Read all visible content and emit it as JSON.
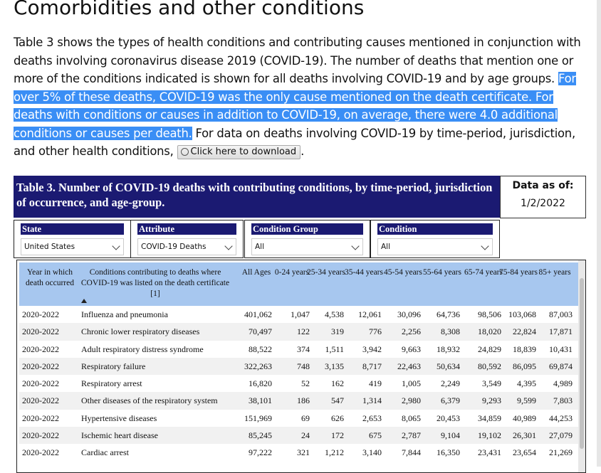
{
  "heading": "Comorbidities and other conditions",
  "paragraph": {
    "intro": "Table 3 shows the types of health conditions and contributing causes mentioned in conjunction with deaths involving coronavirus disease 2019 (COVID-19). The number of deaths that mention one or more of the conditions indicated is shown for all deaths involving COVID-19 and by age groups.",
    "highlight": "For over 5% of these deaths, COVID-19 was the only cause mentioned on the death certificate. For deaths with conditions or causes in addition to COVID-19, on average, there were 4.0 additional conditions or causes per death.",
    "outro": "For data on deaths involving COVID-19 by time-period, jurisdiction, and other health conditions,",
    "button": "Click here to download",
    "end": "."
  },
  "table": {
    "title": "Table 3. Number of COVID-19 deaths with contributing conditions, by time-period, jurisdiction of occurrence, and age-group.",
    "data_as_of_label": "Data as of:",
    "data_as_of": "1/2/2022",
    "filters": [
      {
        "label": "State",
        "value": "United States"
      },
      {
        "label": "Attribute",
        "value": "COVID-19 Deaths"
      },
      {
        "label": "Condition Group",
        "value": "All"
      },
      {
        "label": "Condition",
        "value": "All"
      }
    ],
    "columns": [
      "Year in which death occurred",
      "Conditions contributing to deaths where COVID-19 was listed on the death certificate [1]",
      "All Ages",
      "0-24 years",
      "25-34 years",
      "35-44 years",
      "45-54 years",
      "55-64 years",
      "65-74 years",
      "75-84 years",
      "85+ years"
    ],
    "rows": [
      [
        "2020-2022",
        "Influenza and pneumonia",
        "401,062",
        "1,047",
        "4,538",
        "12,061",
        "30,096",
        "64,736",
        "98,506",
        "103,068",
        "87,003"
      ],
      [
        "2020-2022",
        "Chronic lower respiratory diseases",
        "70,497",
        "122",
        "319",
        "776",
        "2,256",
        "8,308",
        "18,020",
        "22,824",
        "17,871"
      ],
      [
        "2020-2022",
        "Adult respiratory distress syndrome",
        "88,522",
        "374",
        "1,511",
        "3,942",
        "9,663",
        "18,932",
        "24,829",
        "18,839",
        "10,431"
      ],
      [
        "2020-2022",
        "Respiratory failure",
        "322,263",
        "748",
        "3,135",
        "8,717",
        "22,463",
        "50,634",
        "80,592",
        "86,095",
        "69,874"
      ],
      [
        "2020-2022",
        "Respiratory arrest",
        "16,820",
        "52",
        "162",
        "419",
        "1,005",
        "2,249",
        "3,549",
        "4,395",
        "4,989"
      ],
      [
        "2020-2022",
        "Other diseases of the respiratory system",
        "38,101",
        "186",
        "547",
        "1,314",
        "2,980",
        "6,379",
        "9,293",
        "9,599",
        "7,803"
      ],
      [
        "2020-2022",
        "Hypertensive diseases",
        "151,969",
        "69",
        "626",
        "2,653",
        "8,065",
        "20,453",
        "34,859",
        "40,989",
        "44,253"
      ],
      [
        "2020-2022",
        "Ischemic heart disease",
        "85,245",
        "24",
        "172",
        "675",
        "2,787",
        "9,104",
        "19,102",
        "26,301",
        "27,079"
      ],
      [
        "2020-2022",
        "Cardiac arrest",
        "97,222",
        "321",
        "1,212",
        "3,140",
        "7,844",
        "16,350",
        "23,431",
        "23,654",
        "21,269"
      ]
    ]
  }
}
